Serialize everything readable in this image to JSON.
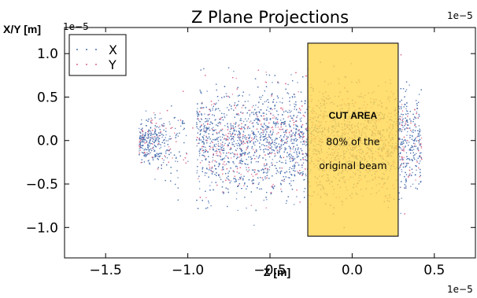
{
  "chart_data": {
    "type": "scatter",
    "title": "Z Plane Projections",
    "xlabel": "Z [m]",
    "ylabel": "X/Y [m]",
    "x_exponent_label": "1e−5",
    "y_exponent_label": "1e−5",
    "top_right_exponent_label": "1e−5",
    "xlim": [
      -1.75e-05,
      7.5e-06
    ],
    "ylim": [
      -1.35e-05,
      1.3e-05
    ],
    "x_ticks": [
      -1.5e-05,
      -1e-05,
      -5e-06,
      0.0,
      5e-06
    ],
    "x_tick_labels": [
      "−1.5",
      "−1.0",
      "−0.5",
      "0.0",
      "0.5"
    ],
    "y_ticks": [
      1e-05,
      5e-06,
      0.0,
      -5e-06,
      -1e-05
    ],
    "y_tick_labels": [
      "1.0",
      "0.5",
      "0.0",
      "−0.5",
      "−1.0"
    ],
    "grid": false,
    "legend_position": "top-left",
    "series": [
      {
        "name": "X",
        "color": "#4c72b0",
        "marker": "dot"
      },
      {
        "name": "Y",
        "color": "#dd6688",
        "marker": "dot"
      }
    ],
    "distribution": {
      "z_core_range": [
        -9.5e-06,
        3.5e-06
      ],
      "z_tail_min": -1.3e-05,
      "z_max": 4.2e-06,
      "transverse_core_halfwidth": 4e-06,
      "transverse_max_halfwidth": 1e-05
    },
    "cut_region": {
      "z_range": [
        -2.7e-06,
        2.8e-06
      ],
      "xy_range": [
        -1.1e-05,
        1.12e-05
      ],
      "fill_color": "#ffd54a",
      "title": "CUT AREA",
      "lines": [
        "80% of the",
        "original beam"
      ]
    }
  }
}
